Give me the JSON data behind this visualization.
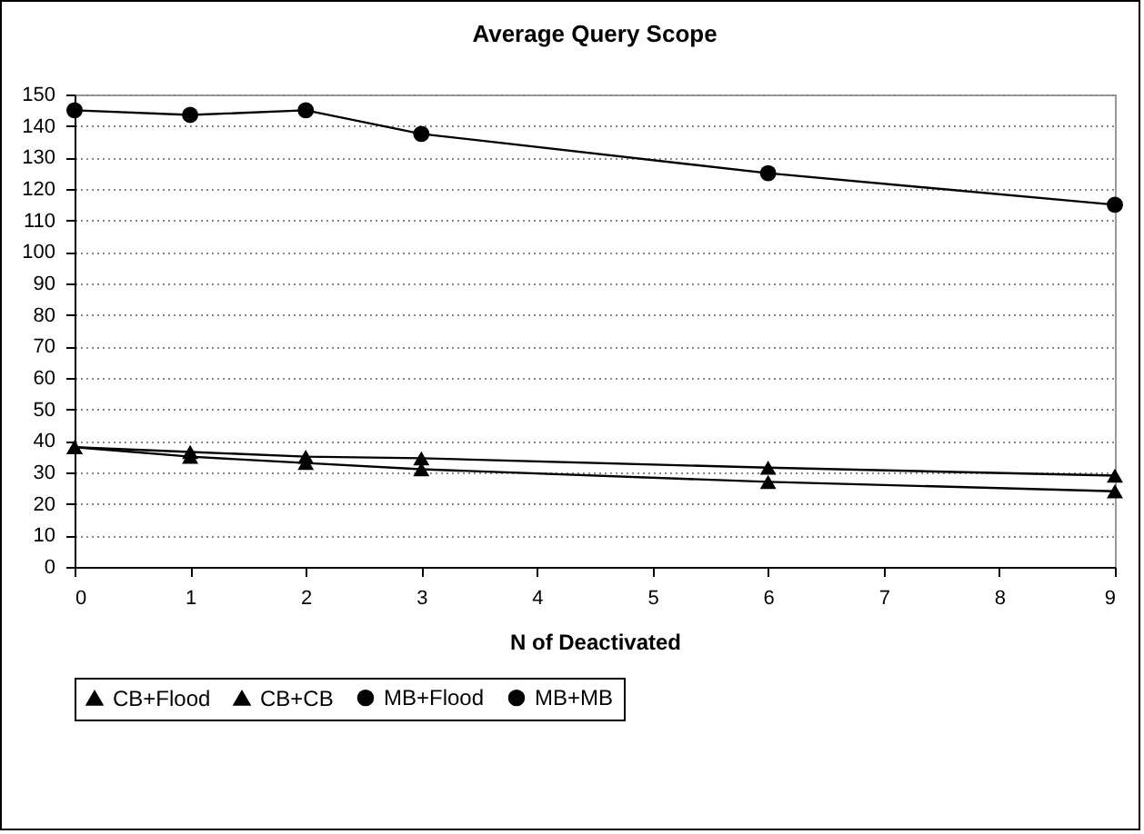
{
  "chart_data": {
    "type": "line",
    "title": "Average Query Scope",
    "xlabel": "N of Deactivated",
    "x": [
      0,
      1,
      2,
      3,
      6,
      9
    ],
    "series": [
      {
        "name": "CB+Flood",
        "color": "#000000",
        "marker": "triangle",
        "values": [
          38,
          36.5,
          35,
          34.5,
          31.5,
          29
        ]
      },
      {
        "name": "CB+CB",
        "color": "#000000",
        "marker": "triangle",
        "values": [
          38,
          35,
          33,
          31,
          27,
          24
        ]
      },
      {
        "name": "MB+Flood",
        "color": "#000000",
        "marker": "circle",
        "values": [
          null,
          null,
          null,
          null,
          null,
          null
        ]
      },
      {
        "name": "MB+MB",
        "color": "#000000",
        "marker": "circle",
        "values": [
          145,
          143.5,
          145,
          137.5,
          125,
          115
        ]
      }
    ],
    "xlim": [
      0,
      9
    ],
    "xticks": [
      0,
      1,
      2,
      3,
      4,
      5,
      6,
      7,
      8,
      9
    ],
    "ylim": [
      0,
      150
    ],
    "yticks": [
      0,
      10,
      20,
      30,
      40,
      50,
      60,
      70,
      80,
      90,
      100,
      110,
      120,
      130,
      140,
      150
    ],
    "grid": "y",
    "legend": "bottom",
    "line_style": "solid"
  }
}
